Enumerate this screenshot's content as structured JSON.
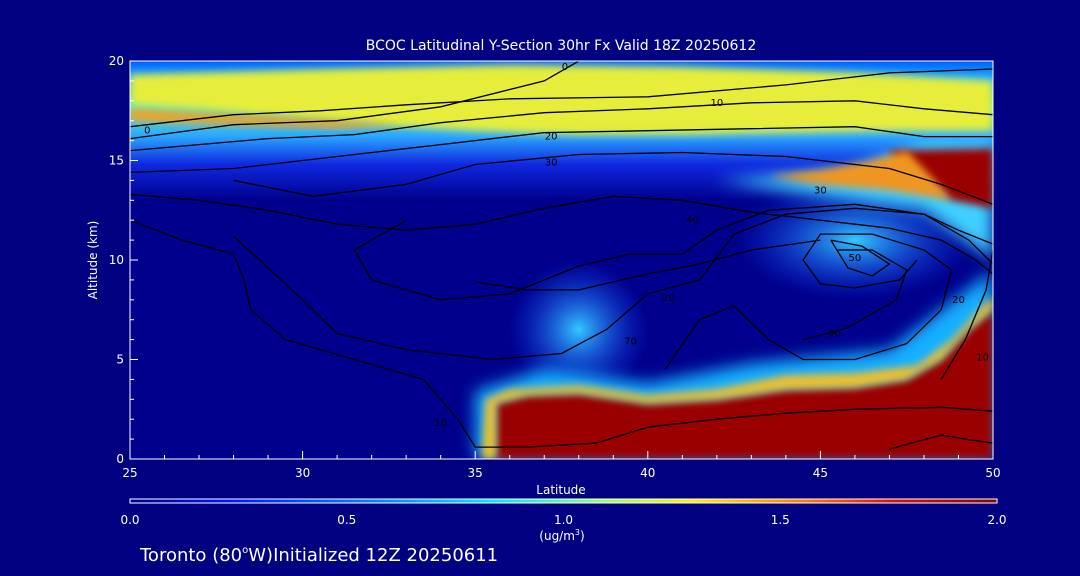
{
  "chart_data": {
    "type": "heatmap",
    "title": "BCOC Latitudinal Y-Section 30hr  Fx Valid 18Z 20250612",
    "xlabel": "Latitude",
    "ylabel": "Altitude (km)",
    "xlim": [
      25,
      50
    ],
    "ylim": [
      0,
      20
    ],
    "x_ticks": [
      25,
      30,
      35,
      40,
      45,
      50
    ],
    "y_ticks": [
      0,
      5,
      10,
      15,
      20
    ],
    "colorbar": {
      "min": 0.0,
      "max": 2.0,
      "ticks": [
        "0.0",
        "0.5",
        "1.0",
        "1.5",
        "2.0"
      ],
      "unit_label": "(ug/m",
      "unit_exp": "3",
      "unit_close": ")"
    },
    "shaded_regions": [
      {
        "name": "upper-layer",
        "value": 1.2,
        "color": "#e6ee3a",
        "polygon": [
          [
            25,
            17.8
          ],
          [
            27,
            17.6
          ],
          [
            29,
            17.3
          ],
          [
            31,
            17.0
          ],
          [
            33,
            16.7
          ],
          [
            35,
            16.5
          ],
          [
            38,
            16.3
          ],
          [
            41,
            16.3
          ],
          [
            44,
            16.4
          ],
          [
            47,
            16.5
          ],
          [
            50,
            16.5
          ],
          [
            50,
            19.0
          ],
          [
            46,
            19.4
          ],
          [
            41,
            19.7
          ],
          [
            36,
            19.8
          ],
          [
            31,
            19.6
          ],
          [
            25,
            19.3
          ]
        ]
      },
      {
        "name": "upper-core",
        "value": 1.5,
        "color": "#f5a021",
        "polygon": [
          [
            25,
            17.6
          ],
          [
            28,
            17.3
          ],
          [
            31,
            17.0
          ],
          [
            33,
            16.8
          ],
          [
            31,
            16.6
          ],
          [
            28,
            16.8
          ],
          [
            25,
            17.0
          ]
        ]
      },
      {
        "name": "high-east-plume",
        "value": 2.0,
        "color": "#9a0000",
        "polygon": [
          [
            47,
            15.5
          ],
          [
            50,
            15.6
          ],
          [
            50,
            12.6
          ],
          [
            48.8,
            13.0
          ],
          [
            48,
            14.0
          ],
          [
            47.2,
            15.0
          ]
        ]
      },
      {
        "name": "high-east-edge",
        "value": 1.5,
        "color": "#f09520",
        "polygon": [
          [
            43.5,
            14.2
          ],
          [
            45,
            14.5
          ],
          [
            46.5,
            15.0
          ],
          [
            47.5,
            15.5
          ],
          [
            48.2,
            14.2
          ],
          [
            48.8,
            13.0
          ],
          [
            47,
            13.5
          ],
          [
            45,
            13.8
          ]
        ]
      },
      {
        "name": "low-level-plume",
        "value": 2.0,
        "color": "#9a0000",
        "polygon": [
          [
            35.6,
            0
          ],
          [
            35.6,
            2.8
          ],
          [
            36.5,
            3.2
          ],
          [
            38,
            3.3
          ],
          [
            40,
            2.8
          ],
          [
            42,
            3.0
          ],
          [
            44,
            3.5
          ],
          [
            46,
            3.6
          ],
          [
            47.5,
            4.0
          ],
          [
            48.5,
            5.0
          ],
          [
            49.3,
            6.5
          ],
          [
            50,
            7.5
          ],
          [
            50,
            0
          ]
        ]
      },
      {
        "name": "low-level-edge",
        "value": 1.3,
        "color": "#f2c02a",
        "polygon": [
          [
            35.2,
            0
          ],
          [
            35.3,
            3.0
          ],
          [
            36,
            3.5
          ],
          [
            38,
            3.7
          ],
          [
            40,
            3.2
          ],
          [
            42,
            3.5
          ],
          [
            44,
            4.2
          ],
          [
            46,
            4.3
          ],
          [
            47.8,
            4.7
          ],
          [
            48.8,
            6.0
          ],
          [
            49.5,
            7.3
          ],
          [
            50,
            8.2
          ],
          [
            50,
            7.5
          ],
          [
            49.3,
            6.5
          ],
          [
            48.5,
            5.0
          ],
          [
            47.5,
            4.0
          ],
          [
            46,
            3.6
          ],
          [
            44,
            3.5
          ],
          [
            42,
            3.0
          ],
          [
            40,
            2.8
          ],
          [
            38,
            3.3
          ],
          [
            36.5,
            3.2
          ],
          [
            35.6,
            2.8
          ],
          [
            35.6,
            0
          ]
        ]
      }
    ],
    "contour_labels": [
      {
        "text": "0",
        "x": 37.6,
        "y": 19.7
      },
      {
        "text": "0",
        "x": 25.5,
        "y": 16.5
      },
      {
        "text": "10",
        "x": 42.0,
        "y": 17.9
      },
      {
        "text": "20",
        "x": 37.2,
        "y": 16.2
      },
      {
        "text": "30",
        "x": 37.2,
        "y": 14.9
      },
      {
        "text": "30",
        "x": 45.0,
        "y": 13.5
      },
      {
        "text": "40",
        "x": 41.3,
        "y": 12.0
      },
      {
        "text": "50",
        "x": 46.0,
        "y": 10.1
      },
      {
        "text": "40",
        "x": 45.4,
        "y": 6.3
      },
      {
        "text": "20",
        "x": 49.0,
        "y": 8.0
      },
      {
        "text": "10",
        "x": 49.7,
        "y": 5.1
      },
      {
        "text": "70",
        "x": 39.5,
        "y": 5.9
      },
      {
        "text": "10",
        "x": 34.0,
        "y": 1.8
      },
      {
        "text": "20",
        "x": 40.6,
        "y": 8.1
      }
    ],
    "annotation": {
      "city": "Toronto",
      "lon": "(80",
      "deg": "o",
      "rest": "W)Initialized 12Z 20250611"
    }
  }
}
